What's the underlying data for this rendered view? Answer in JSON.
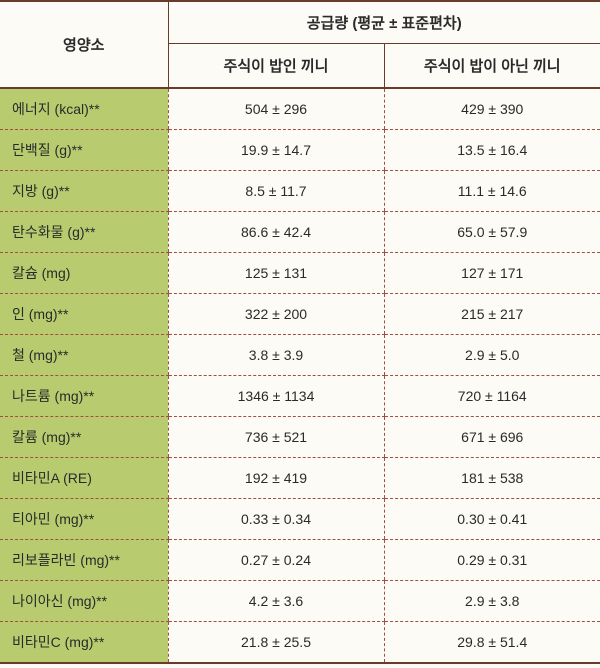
{
  "headers": {
    "nutrient": "영양소",
    "supply": "공급량 (평균 ± 표준편차)",
    "rice_meal": "주식이 밥인 끼니",
    "non_rice_meal": "주식이 밥이 아닌 끼니"
  },
  "colors": {
    "background": "#fdfbf5",
    "nutrient_bg": "#b8cc6f",
    "border_solid": "#6a3a2a",
    "border_dashed": "#a05040",
    "text": "#2a2a2a"
  },
  "rows": [
    {
      "nutrient": "에너지 (kcal)**",
      "rice": "504 ± 296",
      "non_rice": "429 ± 390"
    },
    {
      "nutrient": "단백질 (g)**",
      "rice": "19.9 ± 14.7",
      "non_rice": "13.5 ± 16.4"
    },
    {
      "nutrient": "지방 (g)**",
      "rice": "8.5 ± 11.7",
      "non_rice": "11.1 ± 14.6"
    },
    {
      "nutrient": "탄수화물 (g)**",
      "rice": "86.6 ± 42.4",
      "non_rice": "65.0 ± 57.9"
    },
    {
      "nutrient": "칼슘 (mg)",
      "rice": "125 ± 131",
      "non_rice": "127 ± 171"
    },
    {
      "nutrient": "인 (mg)**",
      "rice": "322 ± 200",
      "non_rice": "215 ± 217"
    },
    {
      "nutrient": "철 (mg)**",
      "rice": "3.8 ± 3.9",
      "non_rice": "2.9 ± 5.0"
    },
    {
      "nutrient": "나트륨 (mg)**",
      "rice": "1346 ± 1134",
      "non_rice": "720 ± 1164"
    },
    {
      "nutrient": "칼륨 (mg)**",
      "rice": "736 ± 521",
      "non_rice": "671 ± 696"
    },
    {
      "nutrient": "비타민A (RE)",
      "rice": "192 ± 419",
      "non_rice": "181 ± 538"
    },
    {
      "nutrient": "티아민 (mg)**",
      "rice": "0.33 ± 0.34",
      "non_rice": "0.30 ± 0.41"
    },
    {
      "nutrient": "리보플라빈 (mg)**",
      "rice": "0.27 ± 0.24",
      "non_rice": "0.29 ± 0.31"
    },
    {
      "nutrient": "나이아신 (mg)**",
      "rice": "4.2 ± 3.6",
      "non_rice": "2.9 ± 3.8"
    },
    {
      "nutrient": "비타민C (mg)**",
      "rice": "21.8 ± 25.5",
      "non_rice": "29.8 ± 51.4"
    }
  ],
  "fontsize": {
    "header": 15,
    "subheader": 14,
    "body": 14
  }
}
